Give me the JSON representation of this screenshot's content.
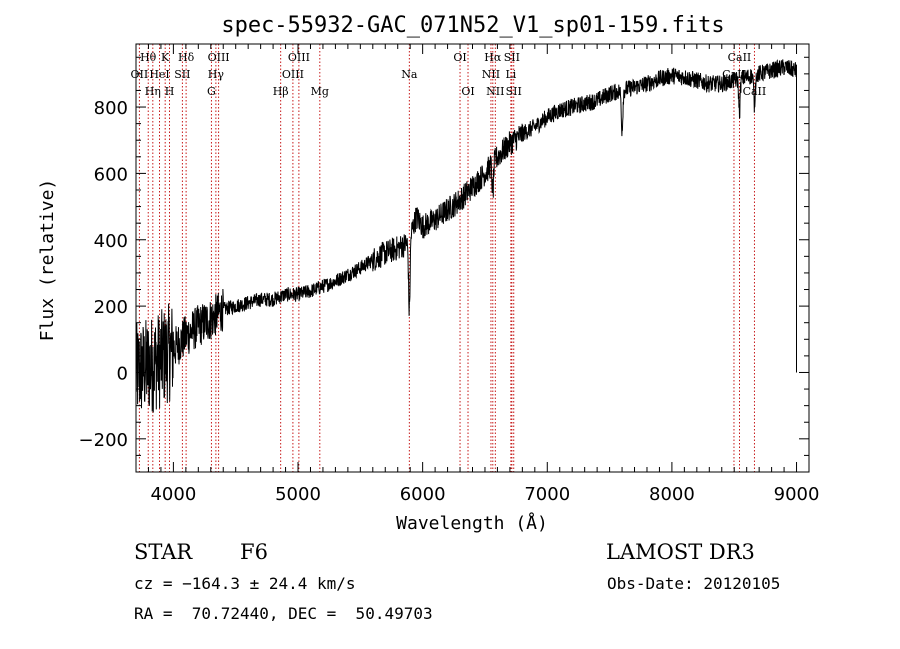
{
  "chart_data": {
    "type": "line",
    "title": "spec-55932-GAC_071N52_V1_sp01-159.fits",
    "xlabel": "Wavelength (Å)",
    "ylabel": "Flux (relative)",
    "xlim": [
      3700,
      9100
    ],
    "ylim": [
      -300,
      990
    ],
    "xticks": [
      4000,
      5000,
      6000,
      7000,
      8000,
      9000
    ],
    "yticks": [
      -200,
      0,
      200,
      400,
      600,
      800
    ],
    "spectral_lines": [
      {
        "name": "OII",
        "wavelength": 3727,
        "row": 2
      },
      {
        "name": "Hθ",
        "wavelength": 3798,
        "row": 1
      },
      {
        "name": "Hη",
        "wavelength": 3835,
        "row": 3
      },
      {
        "name": "HeI",
        "wavelength": 3889,
        "row": 2
      },
      {
        "name": "K",
        "wavelength": 3934,
        "row": 1
      },
      {
        "name": "H",
        "wavelength": 3969,
        "row": 3
      },
      {
        "name": "SII",
        "wavelength": 4072,
        "row": 2
      },
      {
        "name": "Hδ",
        "wavelength": 4102,
        "row": 1
      },
      {
        "name": "G",
        "wavelength": 4305,
        "row": 3
      },
      {
        "name": "Hγ",
        "wavelength": 4341,
        "row": 2
      },
      {
        "name": "OIII",
        "wavelength": 4363,
        "row": 1
      },
      {
        "name": "Hβ",
        "wavelength": 4861,
        "row": 3
      },
      {
        "name": "OIII",
        "wavelength": 4959,
        "row": 2
      },
      {
        "name": "OIII",
        "wavelength": 5007,
        "row": 1
      },
      {
        "name": "Mg",
        "wavelength": 5175,
        "row": 3
      },
      {
        "name": "Na",
        "wavelength": 5893,
        "row": 2
      },
      {
        "name": "OI",
        "wavelength": 6300,
        "row": 1
      },
      {
        "name": "OI",
        "wavelength": 6364,
        "row": 3
      },
      {
        "name": "NII",
        "wavelength": 6548,
        "row": 2
      },
      {
        "name": "Hα",
        "wavelength": 6563,
        "row": 1
      },
      {
        "name": "NII",
        "wavelength": 6583,
        "row": 3
      },
      {
        "name": "Li",
        "wavelength": 6708,
        "row": 2
      },
      {
        "name": "SII",
        "wavelength": 6716,
        "row": 1
      },
      {
        "name": "SII",
        "wavelength": 6731,
        "row": 3
      },
      {
        "name": "CaII",
        "wavelength": 8498,
        "row": 2
      },
      {
        "name": "CaII",
        "wavelength": 8542,
        "row": 1
      },
      {
        "name": "CaII",
        "wavelength": 8662,
        "row": 3
      }
    ],
    "spectrum_anchors": {
      "x": [
        3700,
        3800,
        3900,
        4000,
        4100,
        4200,
        4300,
        4400,
        4500,
        4600,
        4700,
        4800,
        4900,
        5000,
        5100,
        5200,
        5300,
        5400,
        5500,
        5600,
        5700,
        5800,
        5880,
        5950,
        6000,
        6100,
        6200,
        6300,
        6400,
        6500,
        6600,
        6700,
        6800,
        6900,
        7000,
        7100,
        7200,
        7300,
        7400,
        7500,
        7600,
        7700,
        7800,
        7900,
        8000,
        8100,
        8200,
        8300,
        8400,
        8500,
        8600,
        8700,
        8800,
        8900,
        9000
      ],
      "y": [
        0,
        20,
        40,
        70,
        110,
        140,
        160,
        190,
        200,
        210,
        220,
        220,
        235,
        235,
        245,
        260,
        275,
        295,
        315,
        340,
        360,
        375,
        390,
        470,
        440,
        460,
        490,
        520,
        560,
        600,
        650,
        690,
        720,
        740,
        770,
        790,
        800,
        810,
        820,
        840,
        850,
        860,
        870,
        885,
        895,
        890,
        880,
        870,
        870,
        880,
        890,
        900,
        910,
        920,
        910
      ]
    },
    "absorption_features": [
      {
        "x": 5893,
        "depth": 220
      },
      {
        "x": 6563,
        "depth": 90
      },
      {
        "x": 7600,
        "depth": 120
      },
      {
        "x": 8542,
        "depth": 100
      },
      {
        "x": 8662,
        "depth": 90
      }
    ]
  },
  "info": {
    "class_label": "STAR",
    "subclass_label": "F6",
    "survey_label": "LAMOST DR3",
    "cz_text": "cz = −164.3 ± 24.4 km/s",
    "obs_date_text": "Obs-Date: 20120105",
    "radec_text": "RA =  70.72440, DEC =  50.49703"
  }
}
